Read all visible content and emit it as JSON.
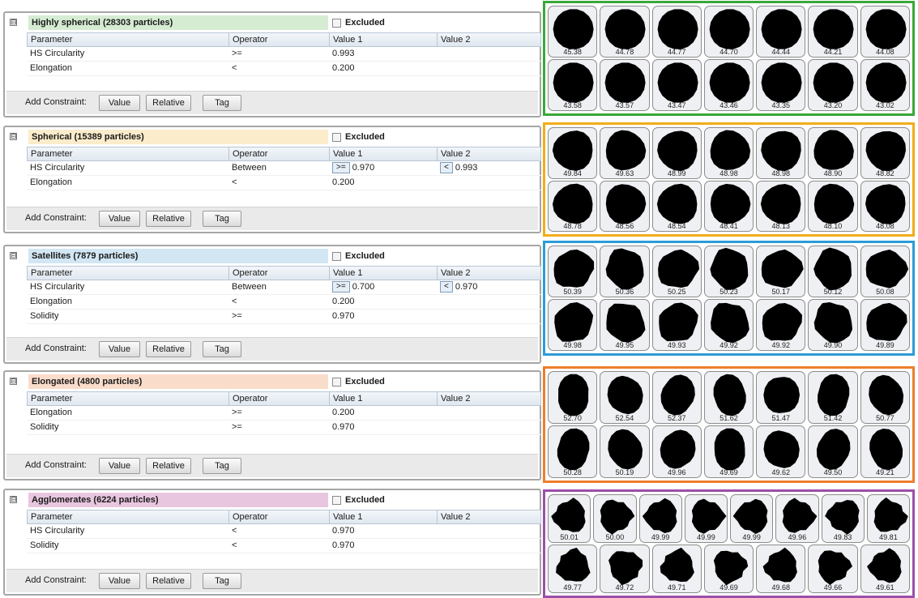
{
  "labels": {
    "excluded": "Excluded",
    "add_constraint": "Add Constraint:",
    "btn_value": "Value",
    "btn_relative": "Relative",
    "btn_tag": "Tag",
    "collapse_glyph": "⊟"
  },
  "columns": [
    "Parameter",
    "Operator",
    "Value 1",
    "Value 2"
  ],
  "classes": [
    {
      "title": "Highly spherical (28303 particles)",
      "title_bg": "#d5ecd2",
      "frame_color": "#3aa83a",
      "rows": [
        {
          "parameter": "HS Circularity",
          "operator": ">=",
          "value1": "0.993",
          "value2": ""
        },
        {
          "parameter": "Elongation",
          "operator": "<",
          "value1": "0.200",
          "value2": ""
        }
      ],
      "particles": {
        "top": [
          "45.38",
          "44.78",
          "44.77",
          "44.70",
          "44.44",
          "44.21",
          "44.08"
        ],
        "bottom": [
          "43.58",
          "43.57",
          "43.47",
          "43.46",
          "43.35",
          "43.20",
          "43.02"
        ]
      }
    },
    {
      "title": "Spherical (15389 particles)",
      "title_bg": "#fbeccb",
      "frame_color": "#f2ac1b",
      "rows": [
        {
          "parameter": "HS Circularity",
          "operator": "Between",
          "value1_op": ">=",
          "value1": "0.970",
          "value2_op": "<",
          "value2": "0.993"
        },
        {
          "parameter": "Elongation",
          "operator": "<",
          "value1": "0.200",
          "value2": ""
        }
      ],
      "particles": {
        "top": [
          "49.84",
          "49.63",
          "48.99",
          "48.98",
          "48.98",
          "48.90",
          "48.82"
        ],
        "bottom": [
          "48.78",
          "48.56",
          "48.54",
          "48.41",
          "48.13",
          "48.10",
          "48.08"
        ]
      }
    },
    {
      "title": "Satellites (7879 particles)",
      "title_bg": "#d2e6f4",
      "frame_color": "#2c9cd6",
      "rows": [
        {
          "parameter": "HS Circularity",
          "operator": "Between",
          "value1_op": ">=",
          "value1": "0.700",
          "value2_op": "<",
          "value2": "0.970"
        },
        {
          "parameter": "Elongation",
          "operator": "<",
          "value1": "0.200",
          "value2": ""
        },
        {
          "parameter": "Solidity",
          "operator": ">=",
          "value1": "0.970",
          "value2": ""
        }
      ],
      "particles": {
        "top": [
          "50.39",
          "50.36",
          "50.25",
          "50.23",
          "50.17",
          "50.12",
          "50.08"
        ],
        "bottom": [
          "49.98",
          "49.95",
          "49.93",
          "49.92",
          "49.92",
          "49.90",
          "49.89"
        ]
      }
    },
    {
      "title": "Elongated (4800 particles)",
      "title_bg": "#fadccb",
      "frame_color": "#ee7d2d",
      "rows": [
        {
          "parameter": "Elongation",
          "operator": ">=",
          "value1": "0.200",
          "value2": ""
        },
        {
          "parameter": "Solidity",
          "operator": ">=",
          "value1": "0.970",
          "value2": ""
        }
      ],
      "particles": {
        "top": [
          "52.70",
          "52.54",
          "52.37",
          "51.62",
          "51.47",
          "51.42",
          "50.77"
        ],
        "bottom": [
          "50.28",
          "50.19",
          "49.96",
          "49.69",
          "49.62",
          "49.50",
          "49.21"
        ]
      }
    },
    {
      "title": "Agglomerates (6224 particles)",
      "title_bg": "#e9c6df",
      "frame_color": "#9b4fa9",
      "rows": [
        {
          "parameter": "HS Circularity",
          "operator": "<",
          "value1": "0.970",
          "value2": ""
        },
        {
          "parameter": "Solidity",
          "operator": "<",
          "value1": "0.970",
          "value2": ""
        }
      ],
      "particles": {
        "top": [
          "50.01",
          "50.00",
          "49.99",
          "49.99",
          "49.99",
          "49.96",
          "49.83",
          "49.81"
        ],
        "bottom": [
          "49.77",
          "49.72",
          "49.71",
          "49.69",
          "49.68",
          "49.66",
          "49.61"
        ]
      }
    }
  ]
}
